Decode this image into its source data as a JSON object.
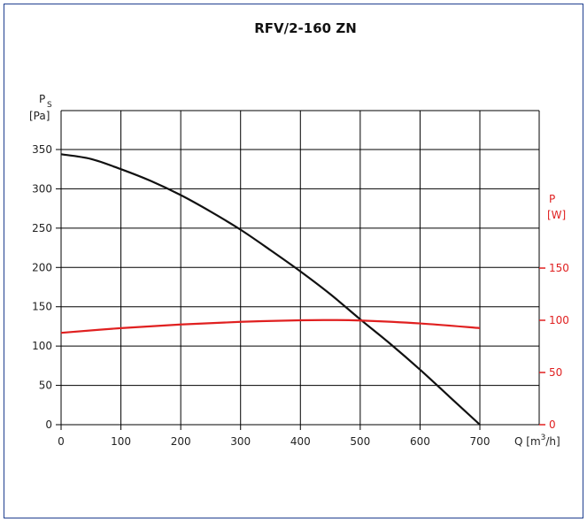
{
  "chart_data": {
    "type": "line",
    "title": "RFV/2-160 ZN",
    "x": [
      0,
      100,
      200,
      300,
      400,
      500,
      600,
      700
    ],
    "xlabel": "Q [m³/h]",
    "xlabel_main": "Q [m",
    "xlabel_sup": "3",
    "xlabel_tail": "/h]",
    "xlim": [
      0,
      700
    ],
    "x_ticks": [
      "0",
      "100",
      "200",
      "300",
      "400",
      "500",
      "600",
      "700"
    ],
    "ylabel_left": {
      "symbol": "P",
      "subscript": "S",
      "unit": "[Pa]"
    },
    "ylim_left": [
      0,
      350
    ],
    "y_ticks_left": [
      "0",
      "50",
      "100",
      "150",
      "200",
      "250",
      "300",
      "350"
    ],
    "ylabel_right": {
      "symbol": "P",
      "unit": "[W]"
    },
    "ylim_right": [
      0,
      150
    ],
    "y_ticks_right": [
      "0",
      "50",
      "100",
      "150"
    ],
    "grid": true,
    "series": [
      {
        "axis": "left",
        "color": "#111111",
        "x": [
          0,
          50,
          100,
          150,
          200,
          250,
          300,
          350,
          400,
          450,
          500,
          550,
          600,
          650,
          700
        ],
        "values": [
          344,
          338,
          325,
          310,
          292,
          271,
          248,
          222,
          195,
          166,
          134,
          103,
          70,
          35,
          0
        ]
      },
      {
        "axis": "right",
        "color": "#e02020",
        "x": [
          0,
          100,
          200,
          300,
          400,
          450,
          500,
          600,
          700
        ],
        "values": [
          88,
          92.5,
          96,
          98.5,
          100,
          100.2,
          99.8,
          97,
          92.5
        ]
      }
    ]
  }
}
